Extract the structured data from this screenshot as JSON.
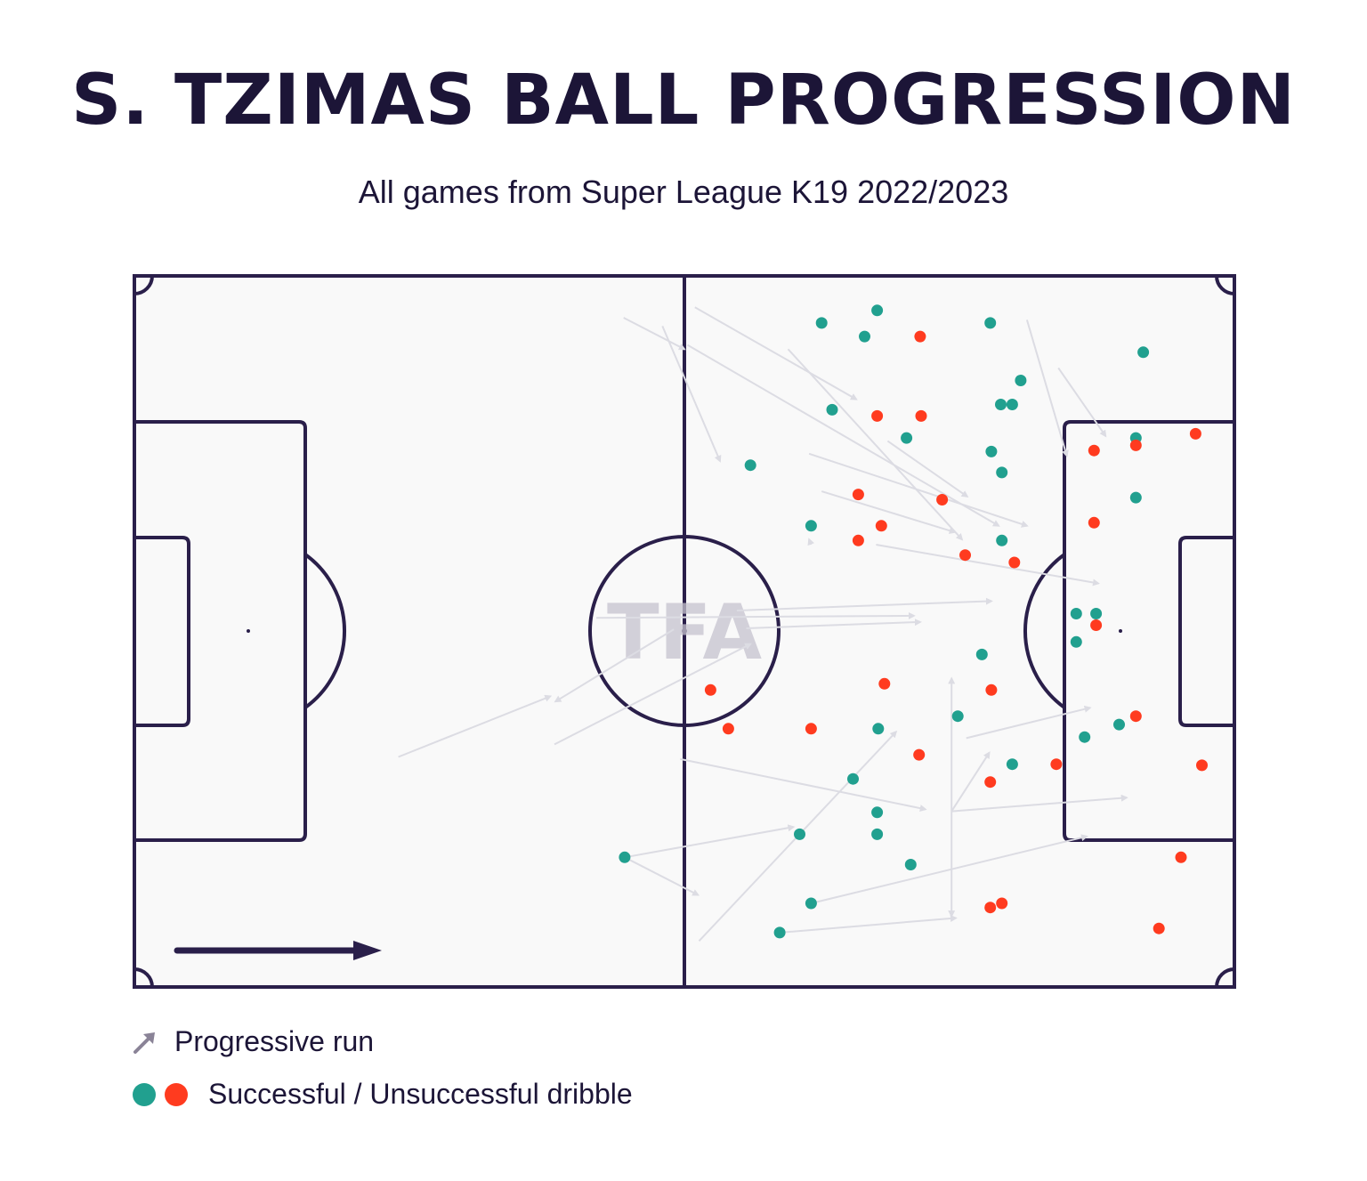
{
  "title": "S. TZIMAS BALL PROGRESSION",
  "subtitle": "All games from Super League K19 2022/2023",
  "watermark": "TFA",
  "legend": {
    "run_label": "Progressive run",
    "dribble_label": "Successful / Unsuccessful dribble"
  },
  "colors": {
    "pitch_line": "#2a1f4a",
    "pitch_fill": "#f9f9f9",
    "run": "#dcdce3",
    "successful": "#21a08f",
    "unsuccessful": "#ff3b1f",
    "text": "#1c1537"
  },
  "chart_data": {
    "type": "scatter",
    "pitch_length": 105,
    "pitch_width": 68,
    "attacking_direction": "left-to-right",
    "progressive_runs": [
      {
        "from": [
          46.7,
          4.0
        ],
        "to": [
          52.5,
          7.0
        ]
      },
      {
        "from": [
          53.5,
          3.0
        ],
        "to": [
          68.9,
          11.8
        ]
      },
      {
        "from": [
          50.4,
          4.8
        ],
        "to": [
          55.9,
          17.7
        ]
      },
      {
        "from": [
          85.2,
          4.2
        ],
        "to": [
          89.0,
          17.2
        ]
      },
      {
        "from": [
          88.2,
          8.8
        ],
        "to": [
          92.7,
          15.3
        ]
      },
      {
        "from": [
          52.8,
          6.6
        ],
        "to": [
          82.5,
          23.9
        ]
      },
      {
        "from": [
          62.4,
          7.0
        ],
        "to": [
          79.0,
          25.2
        ]
      },
      {
        "from": [
          64.4,
          17.0
        ],
        "to": [
          85.2,
          23.9
        ]
      },
      {
        "from": [
          65.6,
          20.6
        ],
        "to": [
          78.3,
          24.5
        ]
      },
      {
        "from": [
          71.9,
          15.8
        ],
        "to": [
          79.5,
          21.1
        ]
      },
      {
        "from": [
          70.8,
          25.7
        ],
        "to": [
          92.0,
          29.4
        ]
      },
      {
        "from": [
          64.6,
          25.7
        ],
        "to": [
          64.4,
          25.2
        ]
      },
      {
        "from": [
          57.5,
          32.0
        ],
        "to": [
          81.8,
          31.1
        ]
      },
      {
        "from": [
          58.4,
          33.7
        ],
        "to": [
          75.0,
          33.1
        ]
      },
      {
        "from": [
          44.1,
          32.7
        ],
        "to": [
          74.4,
          32.5
        ]
      },
      {
        "from": [
          51.5,
          33.8
        ],
        "to": [
          40.2,
          40.7
        ]
      },
      {
        "from": [
          25.2,
          46.0
        ],
        "to": [
          39.7,
          40.2
        ]
      },
      {
        "from": [
          40.1,
          44.8
        ],
        "to": [
          58.8,
          35.2
        ]
      },
      {
        "from": [
          52.1,
          46.2
        ],
        "to": [
          75.5,
          51.0
        ]
      },
      {
        "from": [
          53.9,
          63.6
        ],
        "to": [
          72.7,
          43.6
        ]
      },
      {
        "from": [
          78.0,
          51.2
        ],
        "to": [
          78.0,
          38.5
        ]
      },
      {
        "from": [
          78.0,
          51.2
        ],
        "to": [
          78.0,
          61.2
        ]
      },
      {
        "from": [
          78.0,
          51.2
        ],
        "to": [
          94.7,
          49.9
        ]
      },
      {
        "from": [
          78.0,
          51.2
        ],
        "to": [
          81.6,
          45.6
        ]
      },
      {
        "from": [
          79.4,
          44.2
        ],
        "to": [
          91.2,
          41.3
        ]
      },
      {
        "from": [
          46.8,
          55.6
        ],
        "to": [
          53.8,
          59.2
        ]
      },
      {
        "from": [
          46.8,
          55.6
        ],
        "to": [
          62.9,
          52.7
        ]
      },
      {
        "from": [
          64.6,
          60.0
        ],
        "to": [
          90.9,
          53.6
        ]
      },
      {
        "from": [
          61.6,
          62.8
        ],
        "to": [
          78.4,
          61.4
        ]
      }
    ],
    "dribbles": [
      {
        "x": 65.6,
        "y": 4.5,
        "successful": true
      },
      {
        "x": 70.9,
        "y": 3.3,
        "successful": true
      },
      {
        "x": 69.7,
        "y": 5.8,
        "successful": true
      },
      {
        "x": 75.0,
        "y": 5.8,
        "successful": false
      },
      {
        "x": 81.7,
        "y": 4.5,
        "successful": true
      },
      {
        "x": 96.3,
        "y": 7.3,
        "successful": true
      },
      {
        "x": 84.6,
        "y": 10.0,
        "successful": true
      },
      {
        "x": 66.6,
        "y": 12.8,
        "successful": true
      },
      {
        "x": 70.9,
        "y": 13.4,
        "successful": false
      },
      {
        "x": 75.1,
        "y": 13.4,
        "successful": false
      },
      {
        "x": 82.7,
        "y": 12.3,
        "successful": true
      },
      {
        "x": 83.8,
        "y": 12.3,
        "successful": true
      },
      {
        "x": 73.7,
        "y": 15.5,
        "successful": true
      },
      {
        "x": 58.8,
        "y": 18.1,
        "successful": true
      },
      {
        "x": 81.8,
        "y": 16.8,
        "successful": true
      },
      {
        "x": 82.8,
        "y": 18.8,
        "successful": true
      },
      {
        "x": 95.6,
        "y": 15.5,
        "successful": true
      },
      {
        "x": 95.6,
        "y": 16.2,
        "successful": false
      },
      {
        "x": 91.6,
        "y": 16.7,
        "successful": false
      },
      {
        "x": 101.3,
        "y": 15.1,
        "successful": false
      },
      {
        "x": 69.1,
        "y": 20.9,
        "successful": false
      },
      {
        "x": 77.1,
        "y": 21.4,
        "successful": false
      },
      {
        "x": 95.6,
        "y": 21.2,
        "successful": true
      },
      {
        "x": 91.6,
        "y": 23.6,
        "successful": false
      },
      {
        "x": 64.6,
        "y": 23.9,
        "successful": true
      },
      {
        "x": 71.3,
        "y": 23.9,
        "successful": false
      },
      {
        "x": 69.1,
        "y": 25.3,
        "successful": false
      },
      {
        "x": 82.8,
        "y": 25.3,
        "successful": true
      },
      {
        "x": 79.3,
        "y": 26.7,
        "successful": false
      },
      {
        "x": 84.0,
        "y": 27.4,
        "successful": false
      },
      {
        "x": 89.9,
        "y": 32.3,
        "successful": true
      },
      {
        "x": 91.8,
        "y": 32.3,
        "successful": true
      },
      {
        "x": 91.8,
        "y": 33.4,
        "successful": false
      },
      {
        "x": 89.9,
        "y": 35.0,
        "successful": true
      },
      {
        "x": 80.9,
        "y": 36.2,
        "successful": true
      },
      {
        "x": 71.6,
        "y": 39.0,
        "successful": false
      },
      {
        "x": 81.8,
        "y": 39.6,
        "successful": false
      },
      {
        "x": 78.6,
        "y": 42.1,
        "successful": true
      },
      {
        "x": 64.6,
        "y": 43.3,
        "successful": false
      },
      {
        "x": 71.0,
        "y": 43.3,
        "successful": true
      },
      {
        "x": 94.0,
        "y": 42.9,
        "successful": true
      },
      {
        "x": 95.6,
        "y": 42.1,
        "successful": false
      },
      {
        "x": 90.7,
        "y": 44.1,
        "successful": true
      },
      {
        "x": 56.7,
        "y": 43.3,
        "successful": false
      },
      {
        "x": 74.9,
        "y": 45.8,
        "successful": false
      },
      {
        "x": 83.8,
        "y": 46.7,
        "successful": true
      },
      {
        "x": 88.0,
        "y": 46.7,
        "successful": false
      },
      {
        "x": 101.9,
        "y": 46.8,
        "successful": false
      },
      {
        "x": 55.0,
        "y": 39.6,
        "successful": false
      },
      {
        "x": 68.6,
        "y": 48.1,
        "successful": true
      },
      {
        "x": 81.7,
        "y": 48.4,
        "successful": false
      },
      {
        "x": 70.9,
        "y": 51.3,
        "successful": true
      },
      {
        "x": 70.9,
        "y": 53.4,
        "successful": true
      },
      {
        "x": 63.5,
        "y": 53.4,
        "successful": true
      },
      {
        "x": 46.8,
        "y": 55.6,
        "successful": true
      },
      {
        "x": 74.1,
        "y": 56.3,
        "successful": true
      },
      {
        "x": 99.9,
        "y": 55.6,
        "successful": false
      },
      {
        "x": 64.6,
        "y": 60.0,
        "successful": true
      },
      {
        "x": 81.7,
        "y": 60.4,
        "successful": false
      },
      {
        "x": 82.8,
        "y": 60.0,
        "successful": false
      },
      {
        "x": 97.8,
        "y": 62.4,
        "successful": false
      },
      {
        "x": 61.6,
        "y": 62.8,
        "successful": true
      }
    ]
  }
}
